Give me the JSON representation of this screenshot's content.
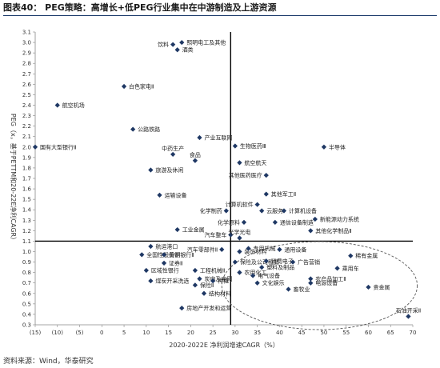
{
  "figure": {
    "title": "图表40： PEG策略：高增长+低PEG行业集中在中游制造及上游资源",
    "source": "资料来源：Wind，华泰研究"
  },
  "chart_data": {
    "type": "scatter",
    "xlabel": "2020-2022E 净利润增速CAGR（%）",
    "ylabel": "PEG（x，基于PETTM和20-22E净利CAGR）",
    "xlim": [
      -15,
      70
    ],
    "ylim": [
      0.3,
      3.1
    ],
    "x_ticks": [
      -15,
      -10,
      -5,
      0,
      5,
      10,
      15,
      20,
      25,
      30,
      35,
      40,
      45,
      50,
      55,
      60,
      65,
      70
    ],
    "x_tick_labels": [
      "(15)",
      "(10)",
      "(5)",
      "0",
      "5",
      "10",
      "15",
      "20",
      "25",
      "30",
      "35",
      "40",
      "45",
      "50",
      "55",
      "60",
      "65",
      "70"
    ],
    "y_ticks": [
      0.3,
      0.4,
      0.5,
      0.6,
      0.7,
      0.8,
      0.9,
      1.0,
      1.1,
      1.2,
      1.3,
      1.4,
      1.5,
      1.6,
      1.7,
      1.8,
      1.9,
      2.0,
      2.1,
      2.2,
      2.3,
      2.4,
      2.5,
      2.6,
      2.7,
      2.8,
      2.9,
      3.0,
      3.1
    ],
    "y_tick_labels": [
      "0.3",
      "0.4",
      "0.5",
      "0.6",
      "0.7",
      "0.8",
      "0.9",
      "1.0",
      "1.1",
      "1.2",
      "1.3",
      "1.4",
      "1.5",
      "1.6",
      "1.7",
      "1.8",
      "1.9",
      "2.0",
      "2.1",
      "2.2",
      "2.3",
      "2.4",
      "2.5",
      "2.6",
      "2.7",
      "2.8",
      "2.9",
      "3.0",
      "3.1"
    ],
    "reference_lines": {
      "x": 29,
      "y": 1.1
    },
    "highlight": {
      "shape": "dashed ellipse",
      "x_range": [
        27,
        71
      ],
      "y_range": [
        0.3,
        1.05
      ]
    },
    "marker_color": "#1f3864",
    "points": [
      {
        "label": "航空机场",
        "x": -10,
        "y": 2.4,
        "anchor": "right"
      },
      {
        "label": "饮料",
        "x": 16,
        "y": 2.98,
        "anchor": "left"
      },
      {
        "label": "照明电工及其他",
        "x": 18,
        "y": 3.0,
        "anchor": "right"
      },
      {
        "label": "酒类",
        "x": 17,
        "y": 2.93,
        "anchor": "right"
      },
      {
        "label": "白色家电Ⅱ",
        "x": 5,
        "y": 2.58,
        "anchor": "right"
      },
      {
        "label": "公路铁路",
        "x": 7,
        "y": 2.17,
        "anchor": "right"
      },
      {
        "label": "国有大型银行Ⅱ",
        "x": -15,
        "y": 2.0,
        "anchor": "right"
      },
      {
        "label": "产业互联网",
        "x": 22,
        "y": 2.09,
        "anchor": "right"
      },
      {
        "label": "中药生产",
        "x": 16,
        "y": 1.93,
        "anchor": "top"
      },
      {
        "label": "食品",
        "x": 21,
        "y": 1.87,
        "anchor": "top"
      },
      {
        "label": "旅游及休闲",
        "x": 11,
        "y": 1.78,
        "anchor": "right"
      },
      {
        "label": "生物医药Ⅲ",
        "x": 30,
        "y": 2.01,
        "anchor": "right"
      },
      {
        "label": "半导体",
        "x": 50,
        "y": 2.0,
        "anchor": "right"
      },
      {
        "label": "航空航天",
        "x": 31,
        "y": 1.85,
        "anchor": "right"
      },
      {
        "label": "其他医药医疗",
        "x": 37,
        "y": 1.73,
        "anchor": "left"
      },
      {
        "label": "运输设备",
        "x": 13,
        "y": 1.54,
        "anchor": "right"
      },
      {
        "label": "其他军工Ⅱ",
        "x": 37,
        "y": 1.55,
        "anchor": "right"
      },
      {
        "label": "计算机软件",
        "x": 35,
        "y": 1.45,
        "anchor": "left"
      },
      {
        "label": "化学制药",
        "x": 28,
        "y": 1.39,
        "anchor": "left"
      },
      {
        "label": "云服务",
        "x": 36,
        "y": 1.39,
        "anchor": "right"
      },
      {
        "label": "计算机设备",
        "x": 41,
        "y": 1.39,
        "anchor": "right"
      },
      {
        "label": "新能源动力系统",
        "x": 48,
        "y": 1.31,
        "anchor": "right"
      },
      {
        "label": "化学原料",
        "x": 32,
        "y": 1.28,
        "anchor": "left"
      },
      {
        "label": "通信设备制造",
        "x": 39,
        "y": 1.28,
        "anchor": "right"
      },
      {
        "label": "工业金属",
        "x": 17,
        "y": 1.21,
        "anchor": "right"
      },
      {
        "label": "其他化学制品Ⅱ",
        "x": 47,
        "y": 1.2,
        "anchor": "right"
      },
      {
        "label": "汽车整车",
        "x": 29,
        "y": 1.16,
        "anchor": "left"
      },
      {
        "label": "光学光电",
        "x": 31,
        "y": 1.13,
        "anchor": "top"
      },
      {
        "label": "航运港口",
        "x": 11,
        "y": 1.05,
        "anchor": "right"
      },
      {
        "label": "全国性股份制银行Ⅱ",
        "x": 9,
        "y": 0.97,
        "anchor": "right"
      },
      {
        "label": "黄铜",
        "x": 14,
        "y": 0.97,
        "anchor": "right"
      },
      {
        "label": "汽车零部件Ⅱ",
        "x": 27,
        "y": 1.02,
        "anchor": "left"
      },
      {
        "label": "装饰材料",
        "x": 31,
        "y": 1.0,
        "anchor": "right"
      },
      {
        "label": "专用机械",
        "x": 33,
        "y": 1.03,
        "anchor": "right"
      },
      {
        "label": "通用设备",
        "x": 40,
        "y": 1.02,
        "anchor": "right"
      },
      {
        "label": "稀有金属",
        "x": 56,
        "y": 0.96,
        "anchor": "right"
      },
      {
        "label": "证券Ⅱ",
        "x": 14,
        "y": 0.89,
        "anchor": "right"
      },
      {
        "label": "保险及公司租赁",
        "x": 30,
        "y": 0.9,
        "anchor": "right"
      },
      {
        "label": "消费电子",
        "x": 37,
        "y": 0.91,
        "anchor": "right"
      },
      {
        "label": "广告营销",
        "x": 43,
        "y": 0.9,
        "anchor": "right"
      },
      {
        "label": "区域性银行",
        "x": 10,
        "y": 0.82,
        "anchor": "right"
      },
      {
        "label": "工程机械Ⅱ",
        "x": 21,
        "y": 0.82,
        "anchor": "right"
      },
      {
        "label": "塑料及制品",
        "x": 36,
        "y": 0.85,
        "anchor": "right"
      },
      {
        "label": "乘用车",
        "x": 53,
        "y": 0.84,
        "anchor": "right"
      },
      {
        "label": "炭电及电网",
        "x": 22,
        "y": 0.74,
        "anchor": "right"
      },
      {
        "label": "种植",
        "x": 25,
        "y": 0.72,
        "anchor": "right"
      },
      {
        "label": "农用化工",
        "x": 31,
        "y": 0.8,
        "anchor": "right"
      },
      {
        "label": "电气设备",
        "x": 34,
        "y": 0.77,
        "anchor": "right"
      },
      {
        "label": "农产品加工Ⅱ",
        "x": 47,
        "y": 0.74,
        "anchor": "right"
      },
      {
        "label": "煤炭开采洗选",
        "x": 11,
        "y": 0.72,
        "anchor": "right"
      },
      {
        "label": "保险Ⅱ",
        "x": 21,
        "y": 0.68,
        "anchor": "right"
      },
      {
        "label": "文化娱乐",
        "x": 35,
        "y": 0.7,
        "anchor": "right"
      },
      {
        "label": "电源设备",
        "x": 47,
        "y": 0.7,
        "anchor": "right"
      },
      {
        "label": "畜牧业",
        "x": 42,
        "y": 0.64,
        "anchor": "right"
      },
      {
        "label": "贵金属",
        "x": 60,
        "y": 0.66,
        "anchor": "right"
      },
      {
        "label": "结构材料",
        "x": 23,
        "y": 0.6,
        "anchor": "right"
      },
      {
        "label": "房地产开发和运营",
        "x": 18,
        "y": 0.46,
        "anchor": "right"
      },
      {
        "label": "石油开采Ⅱ",
        "x": 69,
        "y": 0.38,
        "anchor": "top"
      }
    ]
  }
}
